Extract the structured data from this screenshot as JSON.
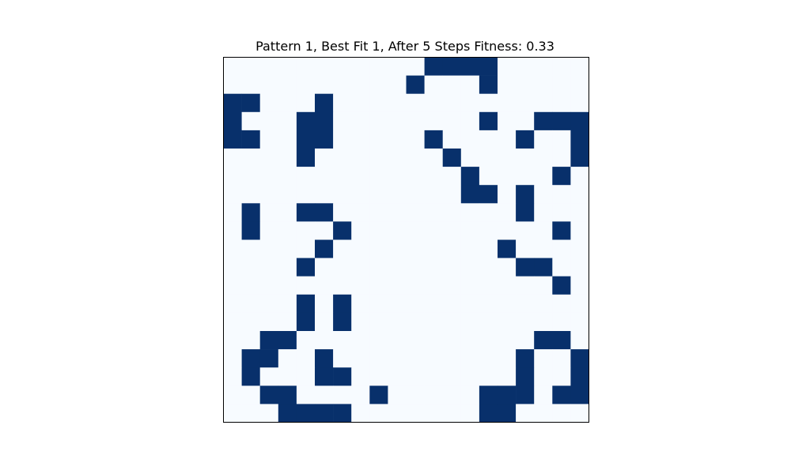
{
  "chart_data": {
    "type": "heatmap",
    "title": "Pattern 1, Best Fit 1, After 5 Steps Fitness: 0.33",
    "xlabel": "",
    "ylabel": "",
    "grid": false,
    "colormap": "Blues",
    "colors": {
      "off": "#f7fbff",
      "on": "#08306b",
      "frame": "#000000"
    },
    "rows": 20,
    "cols": 20,
    "cells": [
      [
        0,
        0,
        0,
        0,
        0,
        0,
        0,
        0,
        0,
        0,
        0,
        1,
        1,
        1,
        1,
        0,
        0,
        0,
        0,
        0
      ],
      [
        0,
        0,
        0,
        0,
        0,
        0,
        0,
        0,
        0,
        0,
        1,
        0,
        0,
        0,
        1,
        0,
        0,
        0,
        0,
        0
      ],
      [
        1,
        1,
        0,
        0,
        0,
        1,
        0,
        0,
        0,
        0,
        0,
        0,
        0,
        0,
        0,
        0,
        0,
        0,
        0,
        0
      ],
      [
        1,
        0,
        0,
        0,
        1,
        1,
        0,
        0,
        0,
        0,
        0,
        0,
        0,
        0,
        1,
        0,
        0,
        1,
        1,
        1
      ],
      [
        1,
        1,
        0,
        0,
        1,
        1,
        0,
        0,
        0,
        0,
        0,
        1,
        0,
        0,
        0,
        0,
        1,
        0,
        0,
        1
      ],
      [
        0,
        0,
        0,
        0,
        1,
        0,
        0,
        0,
        0,
        0,
        0,
        0,
        1,
        0,
        0,
        0,
        0,
        0,
        0,
        1
      ],
      [
        0,
        0,
        0,
        0,
        0,
        0,
        0,
        0,
        0,
        0,
        0,
        0,
        0,
        1,
        0,
        0,
        0,
        0,
        1,
        0
      ],
      [
        0,
        0,
        0,
        0,
        0,
        0,
        0,
        0,
        0,
        0,
        0,
        0,
        0,
        1,
        1,
        0,
        1,
        0,
        0,
        0
      ],
      [
        0,
        1,
        0,
        0,
        1,
        1,
        0,
        0,
        0,
        0,
        0,
        0,
        0,
        0,
        0,
        0,
        1,
        0,
        0,
        0
      ],
      [
        0,
        1,
        0,
        0,
        0,
        0,
        1,
        0,
        0,
        0,
        0,
        0,
        0,
        0,
        0,
        0,
        0,
        0,
        1,
        0
      ],
      [
        0,
        0,
        0,
        0,
        0,
        1,
        0,
        0,
        0,
        0,
        0,
        0,
        0,
        0,
        0,
        1,
        0,
        0,
        0,
        0
      ],
      [
        0,
        0,
        0,
        0,
        1,
        0,
        0,
        0,
        0,
        0,
        0,
        0,
        0,
        0,
        0,
        0,
        1,
        1,
        0,
        0
      ],
      [
        0,
        0,
        0,
        0,
        0,
        0,
        0,
        0,
        0,
        0,
        0,
        0,
        0,
        0,
        0,
        0,
        0,
        0,
        1,
        0
      ],
      [
        0,
        0,
        0,
        0,
        1,
        0,
        1,
        0,
        0,
        0,
        0,
        0,
        0,
        0,
        0,
        0,
        0,
        0,
        0,
        0
      ],
      [
        0,
        0,
        0,
        0,
        1,
        0,
        1,
        0,
        0,
        0,
        0,
        0,
        0,
        0,
        0,
        0,
        0,
        0,
        0,
        0
      ],
      [
        0,
        0,
        1,
        1,
        0,
        0,
        0,
        0,
        0,
        0,
        0,
        0,
        0,
        0,
        0,
        0,
        0,
        1,
        1,
        0
      ],
      [
        0,
        1,
        1,
        0,
        0,
        1,
        0,
        0,
        0,
        0,
        0,
        0,
        0,
        0,
        0,
        0,
        1,
        0,
        0,
        1
      ],
      [
        0,
        1,
        0,
        0,
        0,
        1,
        1,
        0,
        0,
        0,
        0,
        0,
        0,
        0,
        0,
        0,
        1,
        0,
        0,
        1
      ],
      [
        0,
        0,
        1,
        1,
        0,
        0,
        0,
        0,
        1,
        0,
        0,
        0,
        0,
        0,
        1,
        1,
        1,
        0,
        1,
        1
      ],
      [
        0,
        0,
        0,
        1,
        1,
        1,
        1,
        0,
        0,
        0,
        0,
        0,
        0,
        0,
        1,
        1,
        0,
        0,
        0,
        0
      ]
    ]
  }
}
